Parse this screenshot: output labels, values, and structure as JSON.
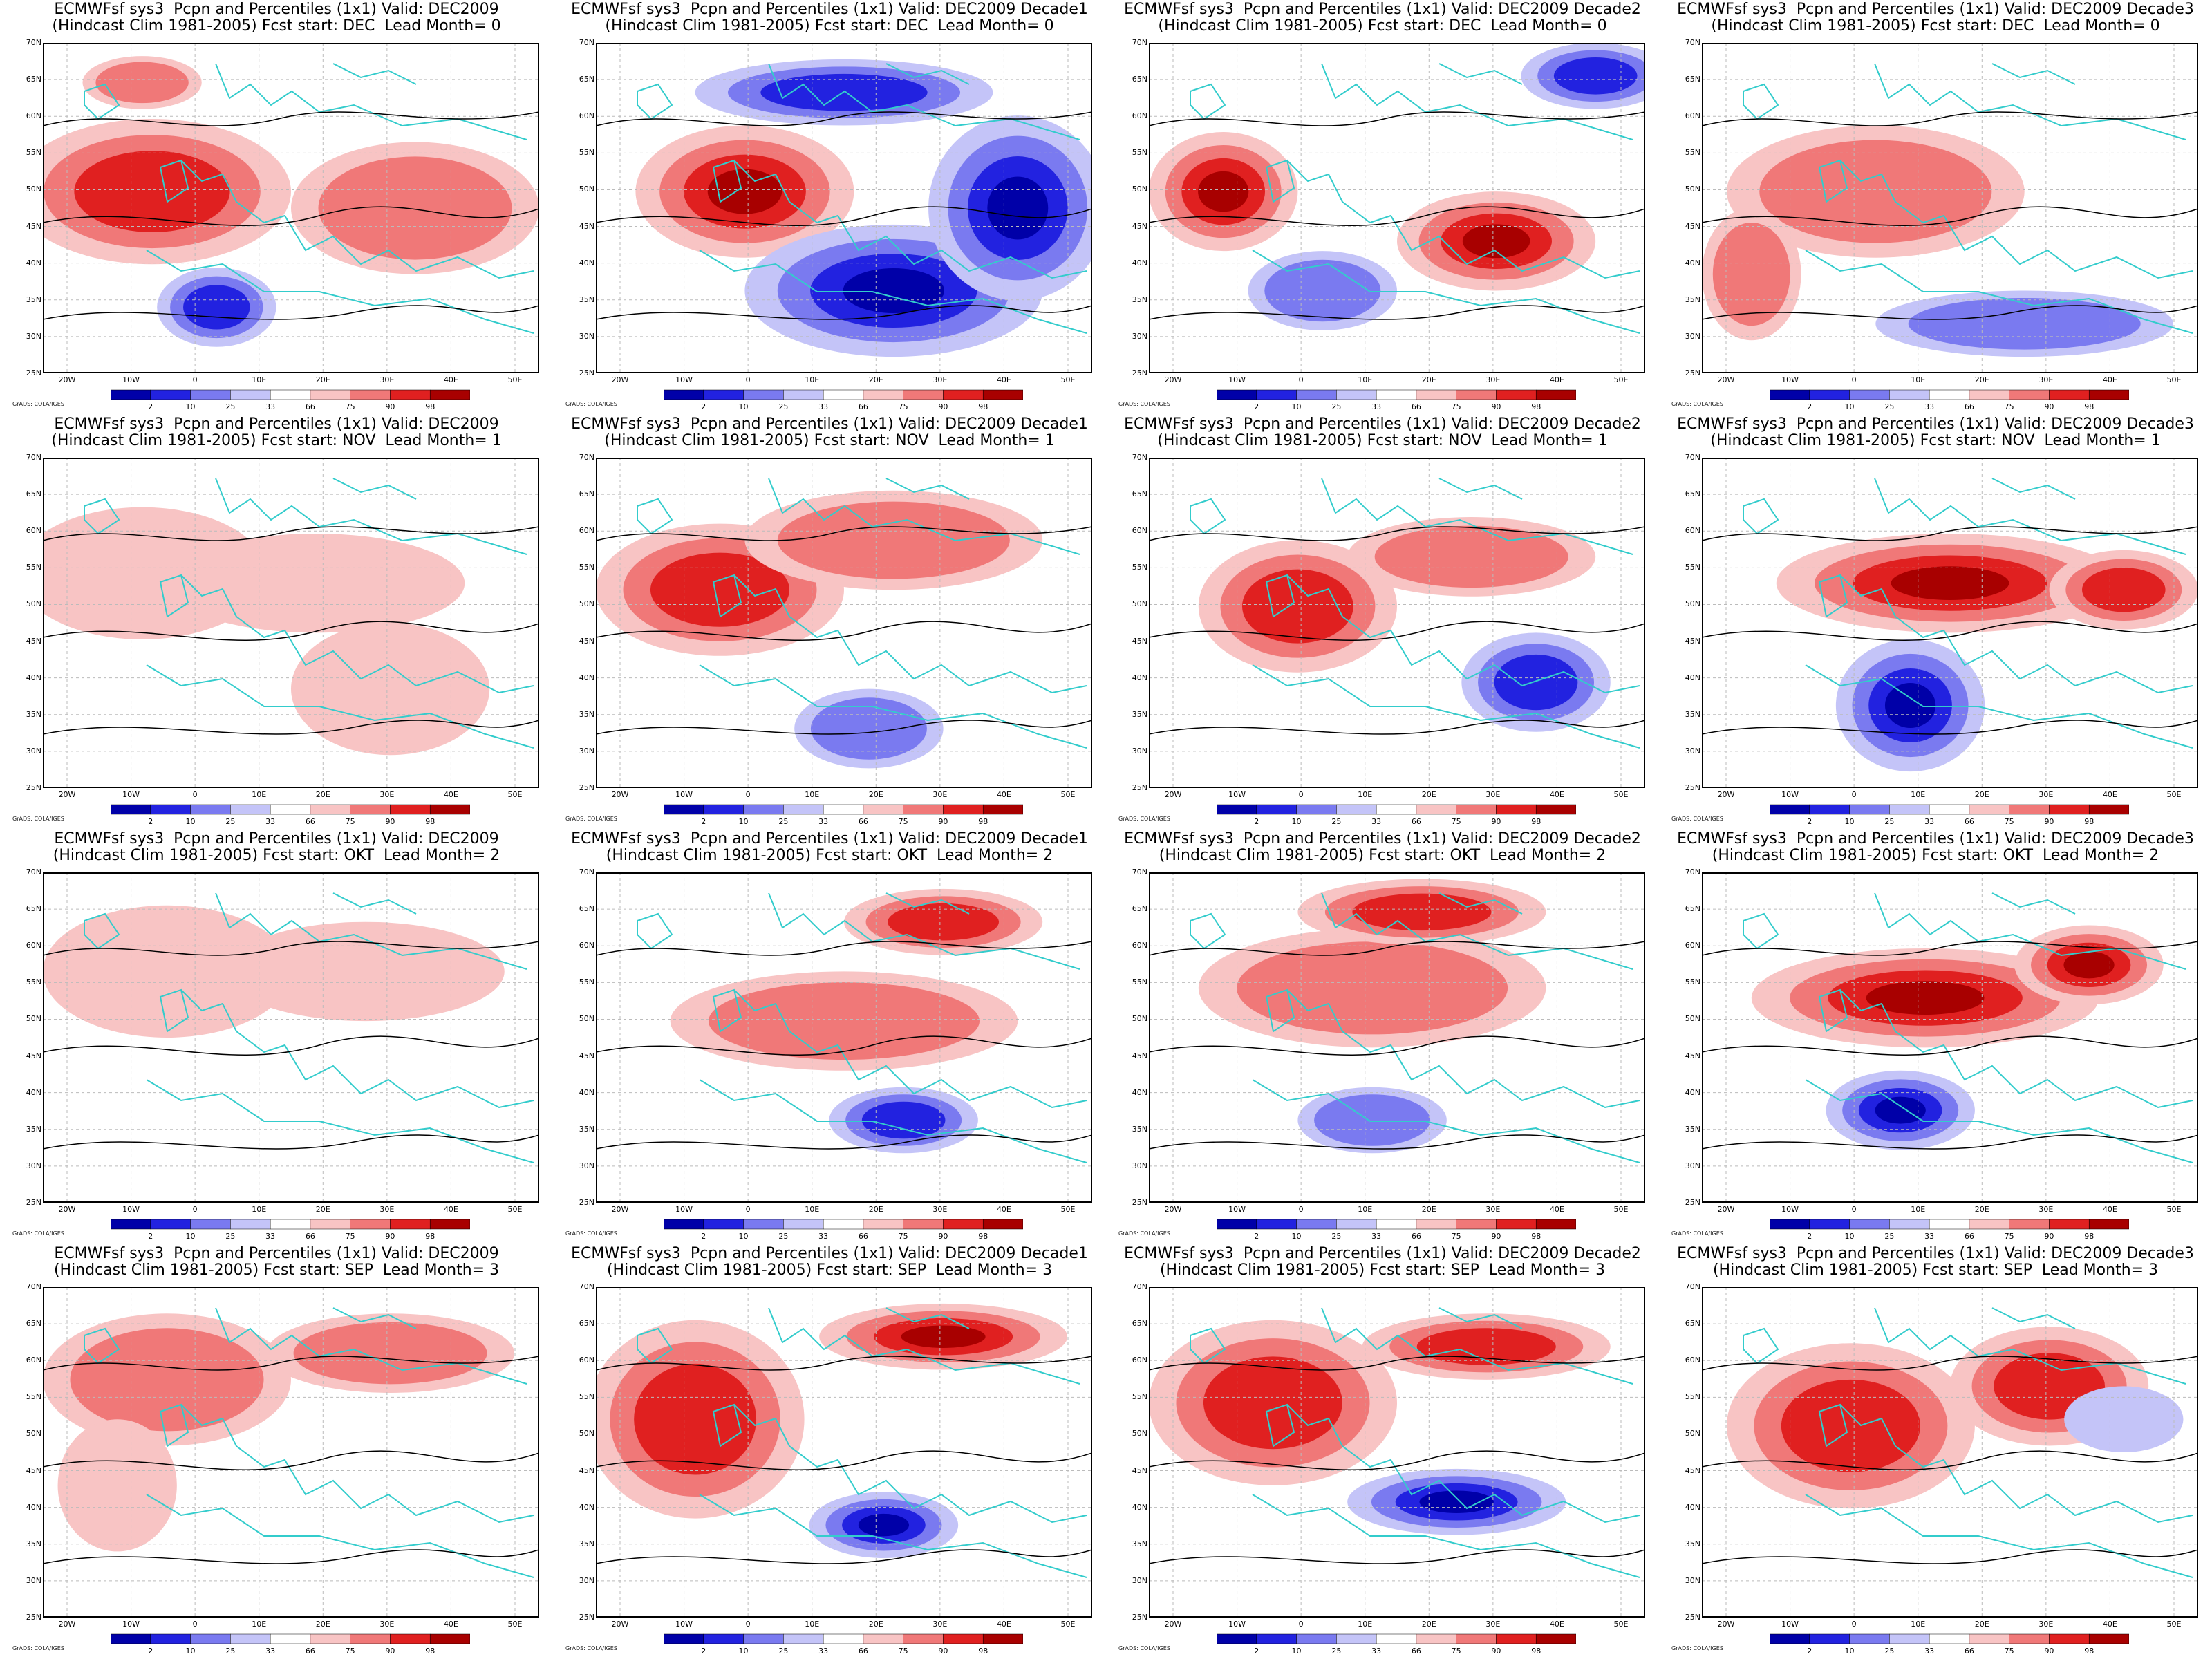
{
  "panels": [
    {
      "t1": "ECMWFsf sys3  Pcpn and Percentiles (1x1) Valid: DEC2009",
      "t2": "(Hindcast Clim 1981-2005) Fcst start: DEC  Lead Month= 0"
    },
    {
      "t1": "ECMWFsf sys3  Pcpn and Percentiles (1x1) Valid: DEC2009 Decade1",
      "t2": "(Hindcast Clim 1981-2005) Fcst start: DEC  Lead Month= 0"
    },
    {
      "t1": "ECMWFsf sys3  Pcpn and Percentiles (1x1) Valid: DEC2009 Decade2",
      "t2": "(Hindcast Clim 1981-2005) Fcst start: DEC  Lead Month= 0"
    },
    {
      "t1": "ECMWFsf sys3  Pcpn and Percentiles (1x1) Valid: DEC2009 Decade3",
      "t2": "(Hindcast Clim 1981-2005) Fcst start: DEC  Lead Month= 0"
    },
    {
      "t1": "ECMWFsf sys3  Pcpn and Percentiles (1x1) Valid: DEC2009",
      "t2": "(Hindcast Clim 1981-2005) Fcst start: NOV  Lead Month= 1"
    },
    {
      "t1": "ECMWFsf sys3  Pcpn and Percentiles (1x1) Valid: DEC2009 Decade1",
      "t2": "(Hindcast Clim 1981-2005) Fcst start: NOV  Lead Month= 1"
    },
    {
      "t1": "ECMWFsf sys3  Pcpn and Percentiles (1x1) Valid: DEC2009 Decade2",
      "t2": "(Hindcast Clim 1981-2005) Fcst start: NOV  Lead Month= 1"
    },
    {
      "t1": "ECMWFsf sys3  Pcpn and Percentiles (1x1) Valid: DEC2009 Decade3",
      "t2": "(Hindcast Clim 1981-2005) Fcst start: NOV  Lead Month= 1"
    },
    {
      "t1": "ECMWFsf sys3  Pcpn and Percentiles (1x1) Valid: DEC2009",
      "t2": "(Hindcast Clim 1981-2005) Fcst start: OKT  Lead Month= 2"
    },
    {
      "t1": "ECMWFsf sys3  Pcpn and Percentiles (1x1) Valid: DEC2009 Decade1",
      "t2": "(Hindcast Clim 1981-2005) Fcst start: OKT  Lead Month= 2"
    },
    {
      "t1": "ECMWFsf sys3  Pcpn and Percentiles (1x1) Valid: DEC2009 Decade2",
      "t2": "(Hindcast Clim 1981-2005) Fcst start: OKT  Lead Month= 2"
    },
    {
      "t1": "ECMWFsf sys3  Pcpn and Percentiles (1x1) Valid: DEC2009 Decade3",
      "t2": "(Hindcast Clim 1981-2005) Fcst start: OKT  Lead Month= 2"
    },
    {
      "t1": "ECMWFsf sys3  Pcpn and Percentiles (1x1) Valid: DEC2009",
      "t2": "(Hindcast Clim 1981-2005) Fcst start: SEP  Lead Month= 3"
    },
    {
      "t1": "ECMWFsf sys3  Pcpn and Percentiles (1x1) Valid: DEC2009 Decade1",
      "t2": "(Hindcast Clim 1981-2005) Fcst start: SEP  Lead Month= 3"
    },
    {
      "t1": "ECMWFsf sys3  Pcpn and Percentiles (1x1) Valid: DEC2009 Decade2",
      "t2": "(Hindcast Clim 1981-2005) Fcst start: SEP  Lead Month= 3"
    },
    {
      "t1": "ECMWFsf sys3  Pcpn and Percentiles (1x1) Valid: DEC2009 Decade3",
      "t2": "(Hindcast Clim 1981-2005) Fcst start: SEP  Lead Month= 3"
    }
  ],
  "lat_labels": [
    "70N",
    "65N",
    "60N",
    "55N",
    "50N",
    "45N",
    "40N",
    "35N",
    "30N",
    "25N"
  ],
  "lon_labels": [
    "20W",
    "10W",
    "0",
    "10E",
    "20E",
    "30E",
    "40E",
    "50E"
  ],
  "colorbar": {
    "ticks": [
      "2",
      "10",
      "25",
      "33",
      "66",
      "75",
      "90",
      "98"
    ],
    "colors": [
      "#0000a8",
      "#2222e0",
      "#7a7af0",
      "#c4c4f8",
      "#ffffff",
      "#f8c4c4",
      "#f07878",
      "#e02020",
      "#a80000"
    ]
  },
  "credit": "GrADS: COLA/IGES",
  "colors": {
    "land_outline": "#33cccc",
    "contour": "#000000",
    "grid": "#bbbbbb"
  }
}
